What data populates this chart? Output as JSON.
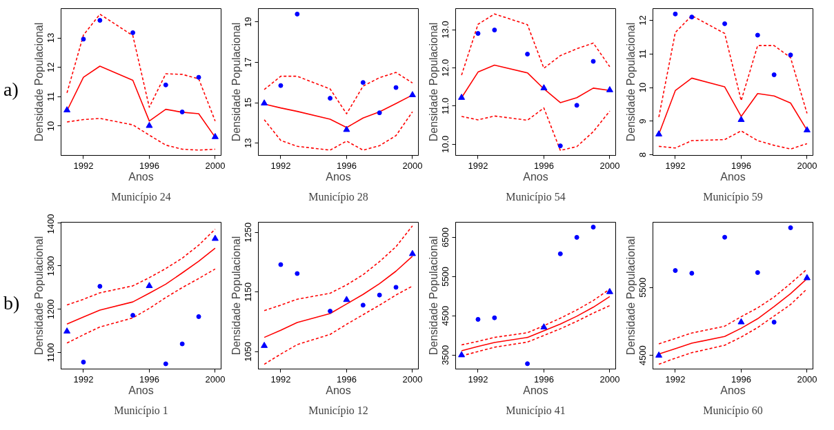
{
  "chart_data": [
    {
      "type": "line",
      "title": "Município 24",
      "xlabel": "Anos",
      "ylabel": "Densidade Populacional",
      "annotations": [
        "a)"
      ],
      "x": [
        1991,
        1992,
        1993,
        1995,
        1996,
        1997,
        1998,
        1999,
        2000
      ],
      "xlim": [
        1990.64,
        2000.36
      ],
      "xticks": [
        1992,
        1996,
        2000
      ],
      "ylim": [
        9.0,
        14.0
      ],
      "yticks": [
        10,
        11,
        12,
        13
      ],
      "series": [
        {
          "type": "line",
          "line_style": "solid",
          "color": "#ff0000",
          "values": [
            10.52,
            11.66,
            12.04,
            11.56,
            10.17,
            10.57,
            10.47,
            10.42,
            9.62
          ]
        },
        {
          "type": "line",
          "line_style": "dashed",
          "color": "#ff0000",
          "values": [
            11.13,
            13.1,
            13.81,
            13.08,
            10.64,
            11.78,
            11.76,
            11.61,
            10.17
          ]
        },
        {
          "type": "line",
          "line_style": "dashed",
          "color": "#ff0000",
          "values": [
            10.14,
            10.22,
            10.26,
            10.04,
            9.69,
            9.35,
            9.21,
            9.18,
            9.21
          ]
        },
        {
          "type": "scatter",
          "marker": "circle",
          "color": "#0000ff",
          "x": [
            1992,
            1993,
            1995,
            1997,
            1998,
            1999
          ],
          "values": [
            12.96,
            13.6,
            13.18,
            11.4,
            10.48,
            11.66
          ]
        },
        {
          "type": "scatter",
          "marker": "triangle",
          "color": "#0000ff",
          "x": [
            1991,
            1996,
            2000
          ],
          "values": [
            10.54,
            10.01,
            9.63
          ]
        }
      ]
    },
    {
      "type": "line",
      "title": "Município 28",
      "xlabel": "Anos",
      "ylabel": "Densidade Populacional",
      "x": [
        1991,
        1992,
        1993,
        1995,
        1996,
        1997,
        1998,
        1999,
        2000
      ],
      "xlim": [
        1990.64,
        2000.36
      ],
      "xticks": [
        1992,
        1996,
        2000
      ],
      "ylim": [
        12.39,
        19.66
      ],
      "yticks": [
        13,
        15,
        17,
        19
      ],
      "series": [
        {
          "type": "line",
          "line_style": "solid",
          "color": "#ff0000",
          "values": [
            14.93,
            14.74,
            14.57,
            14.18,
            13.77,
            14.24,
            14.55,
            14.96,
            15.38
          ]
        },
        {
          "type": "line",
          "line_style": "dashed",
          "color": "#ff0000",
          "values": [
            15.65,
            16.31,
            16.31,
            15.68,
            14.45,
            15.82,
            16.24,
            16.5,
            15.98
          ]
        },
        {
          "type": "line",
          "line_style": "dashed",
          "color": "#ff0000",
          "values": [
            14.16,
            13.13,
            12.84,
            12.65,
            13.1,
            12.65,
            12.87,
            13.37,
            14.55
          ]
        },
        {
          "type": "scatter",
          "marker": "circle",
          "color": "#0000ff",
          "x": [
            1992,
            1993,
            1995,
            1997,
            1998,
            1999
          ],
          "values": [
            15.85,
            19.39,
            15.22,
            16.0,
            14.5,
            15.75
          ]
        },
        {
          "type": "scatter",
          "marker": "triangle",
          "color": "#0000ff",
          "x": [
            1991,
            1996,
            2000
          ],
          "values": [
            14.97,
            13.66,
            15.38
          ]
        }
      ]
    },
    {
      "type": "line",
      "title": "Município 54",
      "xlabel": "Anos",
      "ylabel": "Densidade Populacional",
      "x": [
        1991,
        1992,
        1993,
        1995,
        1996,
        1997,
        1998,
        1999,
        2000
      ],
      "xlim": [
        1990.64,
        2000.36
      ],
      "xticks": [
        1992,
        1996,
        2000
      ],
      "ylim": [
        9.71,
        13.55
      ],
      "yticks": [
        {
          "value": 10,
          "label": "10.0"
        },
        {
          "value": 11,
          "label": "11.0"
        },
        {
          "value": 12,
          "label": "12.0"
        },
        {
          "value": 13,
          "label": "13.0"
        }
      ],
      "series": [
        {
          "type": "line",
          "line_style": "solid",
          "color": "#ff0000",
          "values": [
            11.22,
            11.89,
            12.07,
            11.87,
            11.45,
            11.09,
            11.22,
            11.47,
            11.41
          ]
        },
        {
          "type": "line",
          "line_style": "dashed",
          "color": "#ff0000",
          "values": [
            11.81,
            13.14,
            13.41,
            13.13,
            11.99,
            12.32,
            12.5,
            12.65,
            12.03
          ]
        },
        {
          "type": "line",
          "line_style": "dashed",
          "color": "#ff0000",
          "values": [
            10.73,
            10.64,
            10.74,
            10.63,
            10.95,
            9.84,
            9.94,
            10.33,
            10.87
          ]
        },
        {
          "type": "scatter",
          "marker": "circle",
          "color": "#0000ff",
          "x": [
            1992,
            1993,
            1995,
            1997,
            1998,
            1999
          ],
          "values": [
            12.9,
            12.99,
            12.36,
            9.96,
            11.02,
            12.17
          ]
        },
        {
          "type": "scatter",
          "marker": "triangle",
          "color": "#0000ff",
          "x": [
            1991,
            1996,
            2000
          ],
          "values": [
            11.22,
            11.47,
            11.42
          ]
        }
      ]
    },
    {
      "type": "line",
      "title": "Município 59",
      "xlabel": "Anos",
      "ylabel": "Densidade Populacional",
      "x": [
        1991,
        1992,
        1993,
        1995,
        1996,
        1997,
        1998,
        1999,
        2000
      ],
      "xlim": [
        1990.64,
        2000.36
      ],
      "xticks": [
        1992,
        1996,
        2000
      ],
      "ylim": [
        7.98,
        12.35
      ],
      "yticks": [
        8,
        9,
        10,
        11,
        12
      ],
      "series": [
        {
          "type": "line",
          "line_style": "solid",
          "color": "#ff0000",
          "values": [
            8.61,
            9.91,
            10.28,
            10.02,
            9.14,
            9.82,
            9.75,
            9.54,
            8.73
          ]
        },
        {
          "type": "line",
          "line_style": "dashed",
          "color": "#ff0000",
          "values": [
            9.12,
            11.64,
            12.14,
            11.61,
            9.61,
            11.25,
            11.25,
            10.89,
            9.23
          ]
        },
        {
          "type": "line",
          "line_style": "dashed",
          "color": "#ff0000",
          "values": [
            8.25,
            8.2,
            8.42,
            8.45,
            8.71,
            8.42,
            8.28,
            8.17,
            8.33
          ]
        },
        {
          "type": "scatter",
          "marker": "circle",
          "color": "#0000ff",
          "x": [
            1992,
            1993,
            1995,
            1997,
            1998,
            1999
          ],
          "values": [
            12.19,
            12.1,
            11.9,
            11.56,
            10.38,
            10.97
          ]
        },
        {
          "type": "scatter",
          "marker": "triangle",
          "color": "#0000ff",
          "x": [
            1991,
            1996,
            2000
          ],
          "values": [
            8.61,
            9.04,
            8.73
          ]
        }
      ]
    },
    {
      "type": "line",
      "title": "Município 1",
      "xlabel": "Anos",
      "ylabel": "Densidade Populacional",
      "annotations": [
        "b)"
      ],
      "x": [
        1991,
        1992,
        1993,
        1995,
        1996,
        1997,
        1998,
        1999,
        2000
      ],
      "xlim": [
        1990.64,
        2000.36
      ],
      "xticks": [
        1992,
        1996,
        2000
      ],
      "ylim": [
        1062,
        1401
      ],
      "yticks": [
        1100,
        1200,
        1300,
        1400
      ],
      "series": [
        {
          "type": "line",
          "line_style": "solid",
          "color": "#ff0000",
          "values": [
            1166,
            1182,
            1198,
            1217,
            1237,
            1258,
            1284,
            1311,
            1341
          ]
        },
        {
          "type": "line",
          "line_style": "dashed",
          "color": "#ff0000",
          "values": [
            1210,
            1223,
            1238,
            1254,
            1273,
            1294,
            1318,
            1348,
            1385
          ]
        },
        {
          "type": "line",
          "line_style": "dashed",
          "color": "#ff0000",
          "values": [
            1122,
            1141,
            1159,
            1180,
            1202,
            1227,
            1250,
            1271,
            1293
          ]
        },
        {
          "type": "scatter",
          "marker": "circle",
          "color": "#0000ff",
          "x": [
            1992,
            1993,
            1995,
            1997,
            1998,
            1999
          ],
          "values": [
            1078,
            1253,
            1186,
            1074,
            1120,
            1183
          ]
        },
        {
          "type": "scatter",
          "marker": "triangle",
          "color": "#0000ff",
          "x": [
            1991,
            1996,
            2000
          ],
          "values": [
            1149,
            1254,
            1363
          ]
        }
      ]
    },
    {
      "type": "line",
      "title": "Município 12",
      "xlabel": "Anos",
      "ylabel": "Densidade Populacional",
      "x": [
        1991,
        1992,
        1993,
        1995,
        1996,
        1997,
        1998,
        1999,
        2000
      ],
      "xlim": [
        1990.64,
        2000.36
      ],
      "xticks": [
        1992,
        1996,
        2000
      ],
      "ylim": [
        1021,
        1267
      ],
      "yticks": [
        1050,
        1150,
        1250
      ],
      "series": [
        {
          "type": "line",
          "line_style": "solid",
          "color": "#ff0000",
          "values": [
            1074,
            1086,
            1099,
            1114,
            1130,
            1146,
            1164,
            1185,
            1210
          ]
        },
        {
          "type": "line",
          "line_style": "dashed",
          "color": "#ff0000",
          "values": [
            1119,
            1128,
            1138,
            1148,
            1162,
            1179,
            1201,
            1226,
            1261
          ]
        },
        {
          "type": "line",
          "line_style": "dashed",
          "color": "#ff0000",
          "values": [
            1029,
            1046,
            1062,
            1079,
            1096,
            1112,
            1128,
            1145,
            1160
          ]
        },
        {
          "type": "scatter",
          "marker": "circle",
          "color": "#0000ff",
          "x": [
            1992,
            1993,
            1995,
            1997,
            1998,
            1999
          ],
          "values": [
            1196,
            1181,
            1118,
            1128,
            1145,
            1158
          ]
        },
        {
          "type": "scatter",
          "marker": "triangle",
          "color": "#0000ff",
          "x": [
            1991,
            1996,
            2000
          ],
          "values": [
            1060,
            1137,
            1214
          ]
        }
      ]
    },
    {
      "type": "line",
      "title": "Município 41",
      "xlabel": "Anos",
      "ylabel": "Densidade Populacional",
      "x": [
        1991,
        1992,
        1993,
        1995,
        1996,
        1997,
        1998,
        1999,
        2000
      ],
      "xlim": [
        1990.64,
        2000.36
      ],
      "xticks": [
        1992,
        1996,
        2000
      ],
      "ylim": [
        3145,
        6885
      ],
      "yticks": [
        3500,
        4500,
        5500,
        6500
      ],
      "series": [
        {
          "type": "line",
          "line_style": "solid",
          "color": "#ff0000",
          "values": [
            3610,
            3720,
            3820,
            3950,
            4120,
            4290,
            4490,
            4720,
            4990
          ]
        },
        {
          "type": "line",
          "line_style": "dashed",
          "color": "#ff0000",
          "values": [
            3760,
            3850,
            3950,
            4070,
            4250,
            4440,
            4650,
            4890,
            5180
          ]
        },
        {
          "type": "line",
          "line_style": "dashed",
          "color": "#ff0000",
          "values": [
            3480,
            3590,
            3700,
            3830,
            4000,
            4170,
            4360,
            4570,
            4760
          ]
        },
        {
          "type": "scatter",
          "marker": "circle",
          "color": "#0000ff",
          "x": [
            1992,
            1993,
            1995,
            1997,
            1998,
            1999
          ],
          "values": [
            4410,
            4450,
            3280,
            6080,
            6500,
            6760
          ]
        },
        {
          "type": "scatter",
          "marker": "triangle",
          "color": "#0000ff",
          "x": [
            1991,
            1996,
            2000
          ],
          "values": [
            3500,
            4210,
            5110
          ]
        }
      ]
    },
    {
      "type": "line",
      "title": "Município 60",
      "xlabel": "Anos",
      "ylabel": "Densidade Populacional",
      "x": [
        1991,
        1992,
        1993,
        1995,
        1996,
        1997,
        1998,
        1999,
        2000
      ],
      "xlim": [
        1990.64,
        2000.36
      ],
      "xticks": [
        1992,
        1996,
        2000
      ],
      "ylim": [
        4300,
        6461
      ],
      "yticks": [
        4500,
        5500
      ],
      "series": [
        {
          "type": "line",
          "line_style": "solid",
          "color": "#ff0000",
          "values": [
            4520,
            4600,
            4680,
            4780,
            4900,
            5040,
            5220,
            5410,
            5630
          ]
        },
        {
          "type": "line",
          "line_style": "dashed",
          "color": "#ff0000",
          "values": [
            4670,
            4750,
            4830,
            4930,
            5070,
            5200,
            5360,
            5560,
            5770
          ]
        },
        {
          "type": "line",
          "line_style": "dashed",
          "color": "#ff0000",
          "values": [
            4370,
            4460,
            4540,
            4650,
            4770,
            4910,
            5080,
            5250,
            5480
          ]
        },
        {
          "type": "scatter",
          "marker": "circle",
          "color": "#0000ff",
          "x": [
            1992,
            1993,
            1995,
            1997,
            1998,
            1999
          ],
          "values": [
            5750,
            5710,
            6240,
            5720,
            4990,
            6380
          ]
        },
        {
          "type": "scatter",
          "marker": "triangle",
          "color": "#0000ff",
          "x": [
            1991,
            1996,
            2000
          ],
          "values": [
            4500,
            4990,
            5640
          ]
        }
      ]
    }
  ]
}
